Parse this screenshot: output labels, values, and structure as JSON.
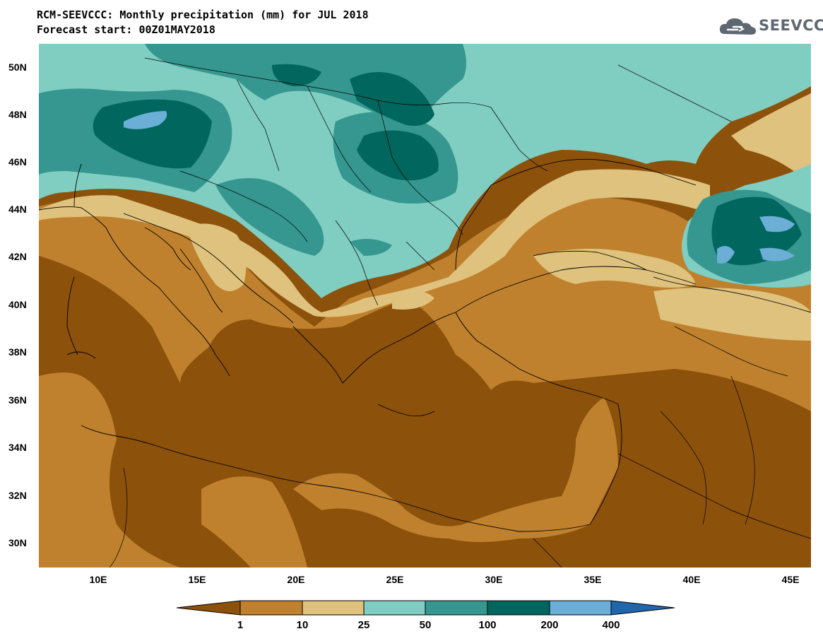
{
  "header": {
    "title": "RCM-SEEVCCC: Monthly precipitation (mm) for JUL 2018",
    "subtitle": "Forecast start: 00Z01MAY2018"
  },
  "logo": {
    "text": "SEEVCCC"
  },
  "axes": {
    "lat_labels": [
      "50N",
      "48N",
      "46N",
      "44N",
      "42N",
      "40N",
      "38N",
      "36N",
      "34N",
      "32N",
      "30N"
    ],
    "lon_labels": [
      "10E",
      "15E",
      "20E",
      "25E",
      "30E",
      "35E",
      "40E",
      "45E"
    ]
  },
  "colorbar": {
    "labels": [
      "1",
      "10",
      "25",
      "50",
      "100",
      "200",
      "400"
    ],
    "colors": {
      "lt1": "#8c510a",
      "c1_10": "#bf812d",
      "c10_25": "#dfc27d",
      "c25_50": "#80cdc1",
      "c50_100": "#35978f",
      "c100_200": "#01665e",
      "c200_400": "#6baed6",
      "gt400": "#2166ac"
    }
  }
}
